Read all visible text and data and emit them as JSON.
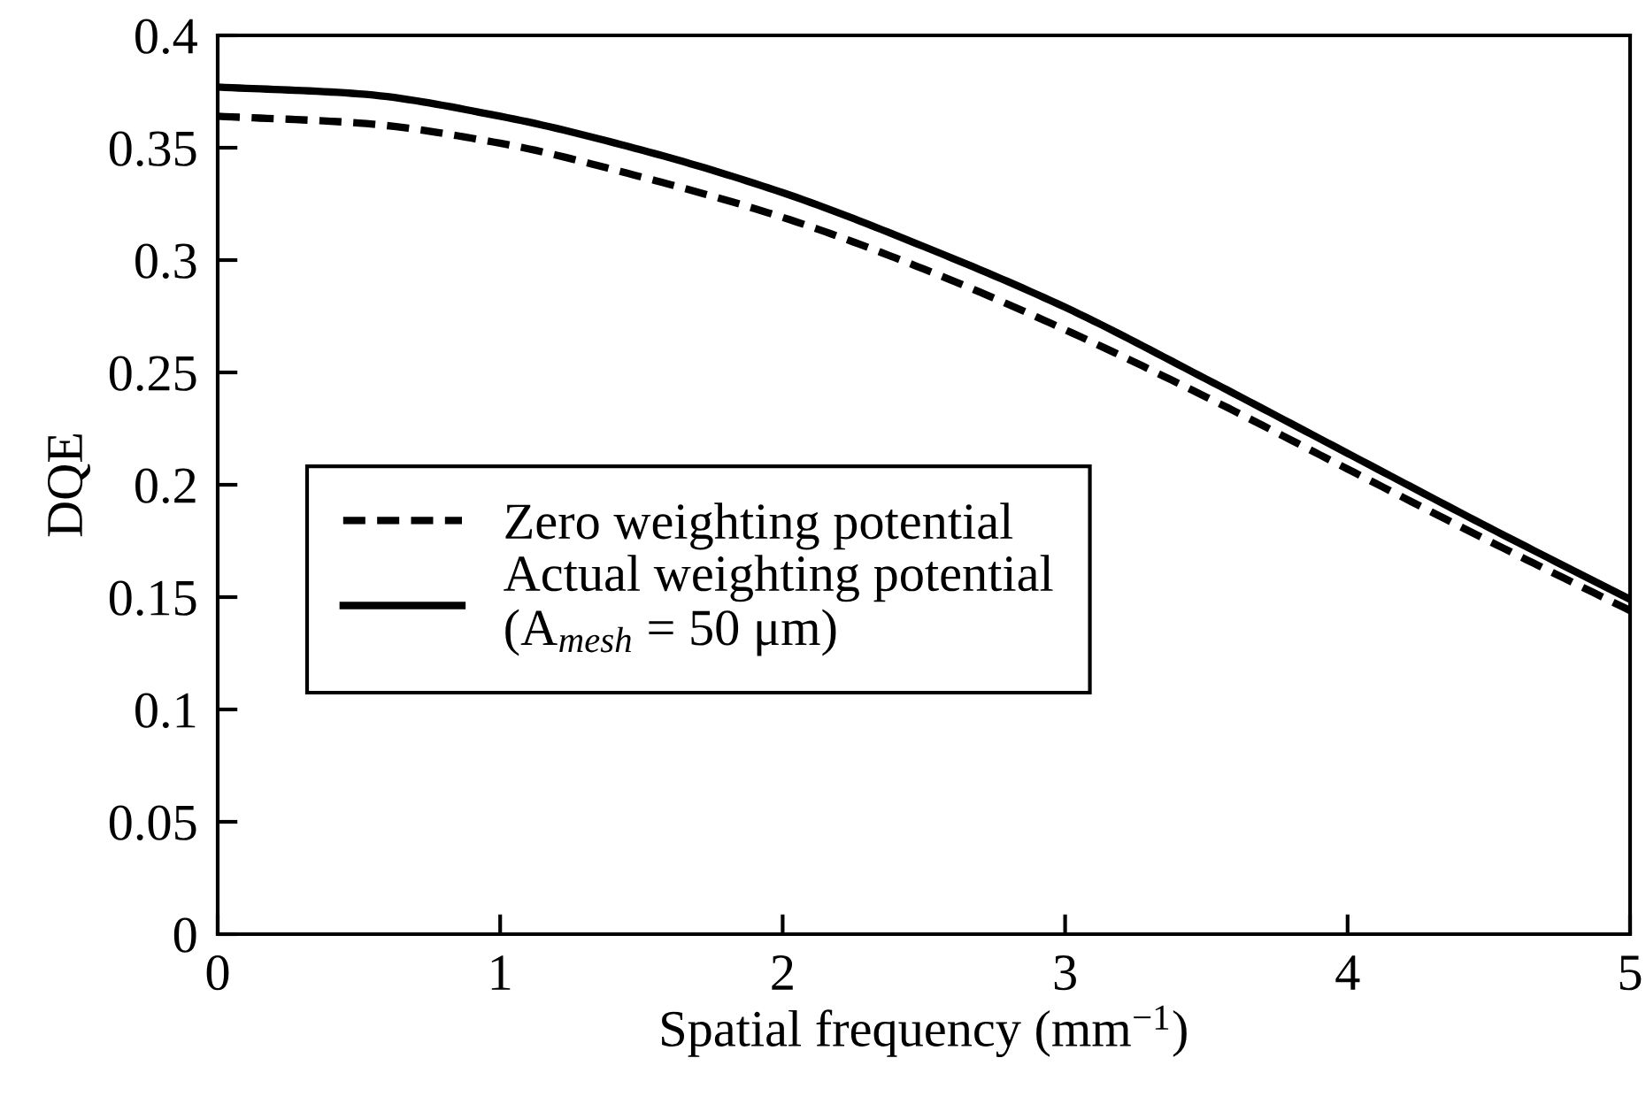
{
  "chart_data": {
    "type": "line",
    "xlabel": "Spatial frequency (mm$^{−1}$)",
    "ylabel": "DQE",
    "xlim": [
      0,
      5
    ],
    "ylim": [
      0,
      0.4
    ],
    "xticks": [
      0,
      1,
      2,
      3,
      4,
      5
    ],
    "yticks": [
      0,
      0.05,
      0.1,
      0.15,
      0.2,
      0.25,
      0.3,
      0.35,
      0.4
    ],
    "grid": false,
    "legend": "bottom left",
    "marker": "none",
    "x": [
      0,
      0.5,
      1,
      1.5,
      2,
      2.5,
      3,
      3.5,
      4,
      4.5,
      5
    ],
    "series": [
      {
        "name": "Zero weighting potential",
        "color": "#000000",
        "line_style": "dashed",
        "values": [
          0.364,
          0.361,
          0.352,
          0.337,
          0.319,
          0.296,
          0.269,
          0.239,
          0.207,
          0.175,
          0.144
        ]
      },
      {
        "name": "Actual weighting potential\n(A$_{mesh}$ = 50 μm)",
        "color": "#000000",
        "line_style": "solid",
        "values": [
          0.377,
          0.374,
          0.364,
          0.349,
          0.33,
          0.306,
          0.279,
          0.247,
          0.214,
          0.181,
          0.149
        ]
      }
    ]
  }
}
